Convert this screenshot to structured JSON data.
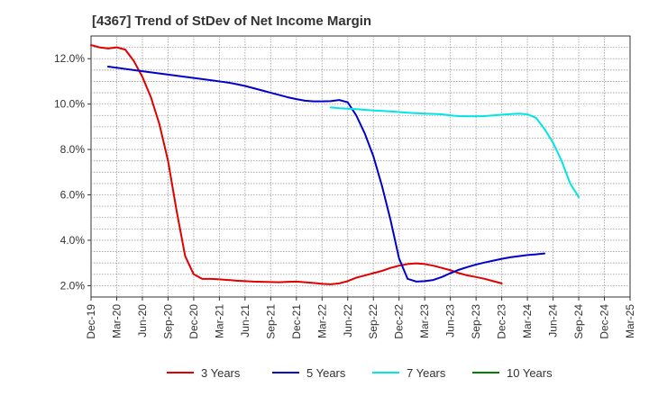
{
  "chart_data": {
    "type": "line",
    "title": "[4367]  Trend of StDev of Net Income Margin",
    "xlabel": "",
    "ylabel": "",
    "ylim": [
      1.5,
      13.0
    ],
    "y_ticks": [
      2.0,
      4.0,
      6.0,
      8.0,
      10.0,
      12.0
    ],
    "y_tick_labels": [
      "2.0%",
      "4.0%",
      "6.0%",
      "8.0%",
      "10.0%",
      "12.0%"
    ],
    "x_tick_labels": [
      "Dec-19",
      "Mar-20",
      "Jun-20",
      "Sep-20",
      "Dec-20",
      "Mar-21",
      "Jun-21",
      "Sep-21",
      "Dec-21",
      "Mar-22",
      "Jun-22",
      "Sep-22",
      "Dec-22",
      "Mar-23",
      "Jun-23",
      "Sep-23",
      "Dec-23",
      "Mar-24",
      "Jun-24",
      "Sep-24",
      "Dec-24",
      "Mar-25"
    ],
    "grid": true,
    "legend_position": "bottom",
    "series": [
      {
        "name": "3 Years",
        "color": "#e00000",
        "start_index": 0,
        "values": [
          12.6,
          12.5,
          12.45,
          12.5,
          12.4,
          11.9,
          11.2,
          10.3,
          9.1,
          7.5,
          5.3,
          3.3,
          2.5,
          2.3,
          2.3,
          2.28,
          2.25,
          2.22,
          2.2,
          2.18,
          2.17,
          2.16,
          2.15,
          2.17,
          2.18,
          2.15,
          2.12,
          2.08,
          2.06,
          2.1,
          2.2,
          2.35,
          2.45,
          2.55,
          2.65,
          2.78,
          2.88,
          2.95,
          2.98,
          2.95,
          2.88,
          2.78,
          2.68,
          2.55,
          2.45,
          2.38,
          2.3,
          2.2,
          2.1
        ]
      },
      {
        "name": "5 Years",
        "color": "#0000cc",
        "start_index": 0,
        "values": [
          null,
          null,
          11.65,
          11.6,
          11.55,
          11.5,
          11.45,
          11.4,
          11.35,
          11.3,
          11.25,
          11.2,
          11.15,
          11.1,
          11.05,
          11.0,
          10.95,
          10.88,
          10.8,
          10.7,
          10.6,
          10.5,
          10.4,
          10.3,
          10.22,
          10.15,
          10.12,
          10.12,
          10.13,
          10.18,
          10.08,
          9.5,
          8.7,
          7.7,
          6.4,
          4.9,
          3.2,
          2.3,
          2.18,
          2.2,
          2.25,
          2.38,
          2.55,
          2.7,
          2.82,
          2.93,
          3.02,
          3.1,
          3.18,
          3.25,
          3.3,
          3.35,
          3.38,
          3.42
        ]
      },
      {
        "name": "7 Years",
        "color": "#00e5e5",
        "start_index": 0,
        "values": [
          null,
          null,
          null,
          null,
          null,
          null,
          null,
          null,
          null,
          null,
          null,
          null,
          null,
          null,
          null,
          null,
          null,
          null,
          null,
          null,
          null,
          null,
          null,
          null,
          null,
          null,
          null,
          null,
          9.85,
          9.82,
          9.8,
          9.78,
          9.75,
          9.72,
          9.7,
          9.68,
          9.65,
          9.62,
          9.6,
          9.58,
          9.57,
          9.55,
          9.5,
          9.47,
          9.46,
          9.46,
          9.47,
          9.5,
          9.53,
          9.56,
          9.58,
          9.55,
          9.4,
          8.9,
          8.3,
          7.5,
          6.5,
          5.9
        ]
      },
      {
        "name": "10 Years",
        "color": "#008000",
        "start_index": 0,
        "values": []
      }
    ]
  }
}
